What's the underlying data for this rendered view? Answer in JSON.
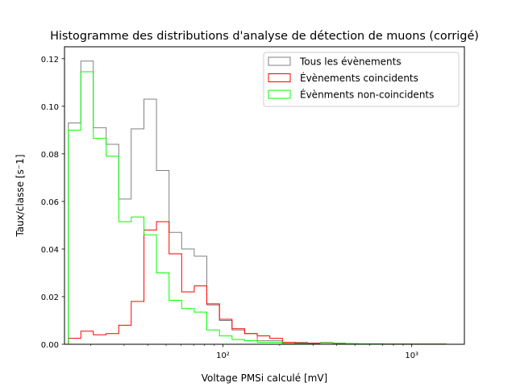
{
  "chart_data": {
    "type": "histogram",
    "title": "Histogramme des distributions d'analyse de détection de muons (corrigé)",
    "xlabel": "Voltage PMSi calculé [mV]",
    "ylabel": "Taux/classe [s⁻1]",
    "x_scale": "log",
    "xlim": [
      14.5,
      1900
    ],
    "ylim": [
      0,
      0.125
    ],
    "y_ticks": [
      0,
      0.02,
      0.04,
      0.06,
      0.08,
      0.1,
      0.12
    ],
    "y_tick_labels": [
      "0.00",
      "0.02",
      "0.04",
      "0.06",
      "0.08",
      "0.10",
      "0.12"
    ],
    "x_ticks": [
      100,
      1000
    ],
    "x_tick_labels": [
      "10²",
      "10³"
    ],
    "bin_edges": [
      15.2,
      17.7,
      20.6,
      24.1,
      28.1,
      32.7,
      38.2,
      44.5,
      51.9,
      60.5,
      70.5,
      82.2,
      95.9,
      111.8,
      130.3,
      152.0,
      177.2,
      206.6,
      240.9,
      280.9,
      327.5,
      381.9,
      445.3,
      519.2,
      605.3,
      705.8,
      822.9,
      959.5,
      1118.8,
      1304.5,
      1521.0
    ],
    "legend": "upper right",
    "series": [
      {
        "name": "Tous les évènements",
        "color": "#808080",
        "values": [
          0.093,
          0.119,
          0.091,
          0.084,
          0.061,
          0.0905,
          0.103,
          0.073,
          0.047,
          0.04,
          0.037,
          0.0165,
          0.01,
          0.006,
          0.0045,
          0.0015,
          0.0015,
          0.0003,
          0.0008,
          0.0005,
          0.0007,
          0.0005,
          0.0003,
          0.0002,
          0.0002,
          0.0001,
          0.0001,
          0.0001,
          0.0001,
          0.0001
        ]
      },
      {
        "name": "Évènements coincidents",
        "color": "#ff0000",
        "values": [
          0.0025,
          0.0055,
          0.004,
          0.0045,
          0.008,
          0.018,
          0.048,
          0.0515,
          0.038,
          0.022,
          0.0245,
          0.017,
          0.0105,
          0.0065,
          0.0045,
          0.0035,
          0.0025,
          0.0008,
          0.0005,
          0.0004,
          0.0006,
          0.0004,
          0.0002,
          0.0001,
          0.0001,
          0.0001,
          0.0001,
          0.0001,
          0.0001,
          0.0001
        ]
      },
      {
        "name": "Évènments non-coincidents",
        "color": "#00ff00",
        "values": [
          0.09,
          0.1145,
          0.0865,
          0.079,
          0.0515,
          0.0535,
          0.046,
          0.03,
          0.0185,
          0.015,
          0.0135,
          0.006,
          0.0035,
          0.002,
          0.0015,
          0.0008,
          0.0008,
          0.0003,
          0.0003,
          0.0001,
          0.0005,
          0.0004,
          0.0003,
          0.0002,
          0.0002,
          0.0001,
          0.0001,
          0.0001,
          0.0001,
          0.0001
        ]
      }
    ]
  }
}
